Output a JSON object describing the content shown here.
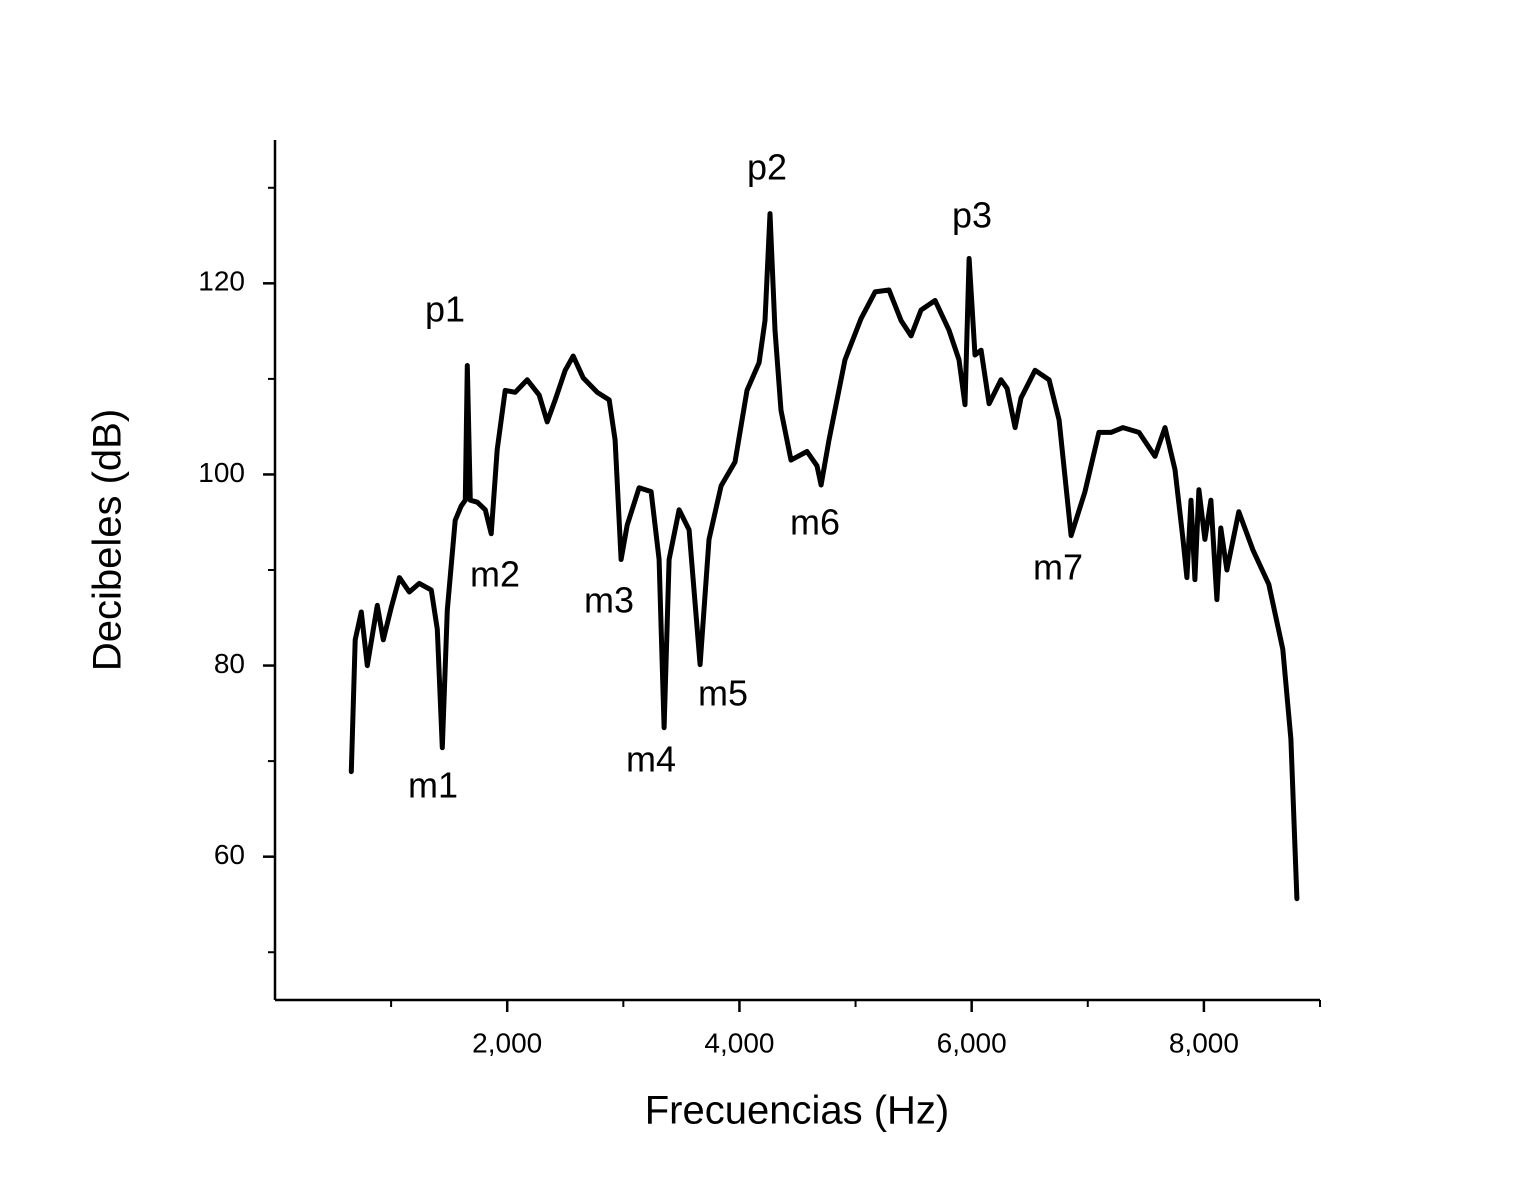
{
  "chart_data": {
    "type": "line",
    "x_label": "Frecuencias (Hz)",
    "y_label": "Decibeles (dB)",
    "xlim": [
      0,
      9000
    ],
    "xticks": [
      {
        "value": 2000,
        "label": "2,000"
      },
      {
        "value": 4000,
        "label": "4,000"
      },
      {
        "value": 6000,
        "label": "6,000"
      },
      {
        "value": 8000,
        "label": "8,000"
      }
    ],
    "xminor": [
      1000,
      3000,
      5000,
      7000,
      9000
    ],
    "ylim": [
      45,
      135
    ],
    "yticks": [
      60,
      80,
      100,
      120
    ],
    "yminor": [
      50,
      70,
      90,
      110,
      130
    ],
    "annotations": [
      "p1",
      "m1",
      "m2",
      "m3",
      "m4",
      "m5",
      "p2",
      "m6",
      "p3",
      "m7"
    ],
    "series": [
      {
        "color": "#000000",
        "x": [
          657,
          691,
          743,
          795,
          881,
          933,
          1002,
          1071,
          1157,
          1243,
          1346,
          1398,
          1441,
          1484,
          1552,
          1604,
          1639,
          1656,
          1682,
          1742,
          1811,
          1862,
          1914,
          1983,
          2069,
          2172,
          2275,
          2344,
          2413,
          2499,
          2568,
          2654,
          2775,
          2878,
          2929,
          2981,
          3033,
          3136,
          3239,
          3308,
          3351,
          3394,
          3480,
          3566,
          3661,
          3738,
          3842,
          3962,
          4065,
          4169,
          4220,
          4263,
          4306,
          4358,
          4444,
          4582,
          4668,
          4703,
          4771,
          4909,
          5047,
          5168,
          5288,
          5392,
          5478,
          5564,
          5685,
          5805,
          5891,
          5943,
          5978,
          6029,
          6081,
          6150,
          6253,
          6305,
          6374,
          6425,
          6546,
          6667,
          6753,
          6856,
          6976,
          7096,
          7200,
          7303,
          7441,
          7579,
          7665,
          7751,
          7820,
          7854,
          7889,
          7923,
          7957,
          8009,
          8060,
          8112,
          8146,
          8198,
          8301,
          8422,
          8559,
          8680,
          8749,
          8801
        ],
        "values": [
          68.9,
          82.7,
          85.6,
          80.0,
          86.3,
          82.7,
          86.1,
          89.2,
          87.7,
          88.6,
          87.9,
          83.8,
          71.4,
          85.8,
          95.2,
          96.7,
          97.3,
          111.4,
          97.3,
          97.1,
          96.3,
          93.8,
          102.6,
          108.8,
          108.6,
          109.9,
          108.3,
          105.5,
          107.8,
          110.9,
          112.4,
          110.1,
          108.6,
          107.8,
          103.6,
          91.1,
          94.7,
          98.6,
          98.2,
          91.1,
          73.5,
          91.1,
          96.3,
          94.2,
          80.1,
          93.2,
          98.8,
          101.3,
          108.8,
          111.7,
          116.1,
          127.3,
          115.1,
          106.7,
          101.5,
          102.4,
          100.9,
          98.9,
          103.6,
          112.0,
          116.3,
          119.1,
          119.3,
          116.1,
          114.5,
          117.2,
          118.2,
          115.1,
          112.0,
          107.3,
          122.6,
          112.5,
          113.0,
          107.4,
          109.9,
          109.0,
          104.9,
          108.0,
          110.9,
          109.9,
          105.7,
          93.6,
          98.2,
          104.4,
          104.4,
          104.9,
          104.4,
          101.9,
          104.9,
          100.5,
          93.2,
          89.2,
          97.3,
          89.0,
          98.4,
          93.2,
          97.3,
          86.9,
          94.4,
          90.0,
          96.1,
          92.1,
          88.5,
          81.7,
          72.3,
          55.6
        ]
      }
    ]
  }
}
